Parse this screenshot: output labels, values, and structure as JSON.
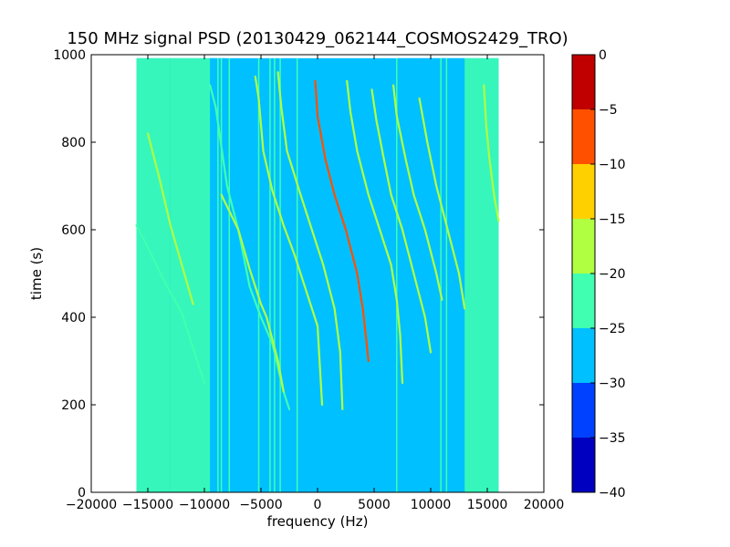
{
  "chart_data": {
    "type": "heatmap",
    "title": "150 MHz signal PSD (20130429_062144_COSMOS2429_TRO)",
    "xlabel": "frequency (Hz)",
    "ylabel": "time (s)",
    "xlim": [
      -20000,
      20000
    ],
    "ylim": [
      0,
      1000
    ],
    "x_ticks": [
      "−20000",
      "−15000",
      "−10000",
      "−5000",
      "0",
      "5000",
      "10000",
      "15000",
      "20000"
    ],
    "x_tick_values": [
      -20000,
      -15000,
      -10000,
      -5000,
      0,
      5000,
      10000,
      15000,
      20000
    ],
    "y_ticks": [
      "0",
      "200",
      "400",
      "600",
      "800",
      "1000"
    ],
    "y_tick_values": [
      0,
      200,
      400,
      600,
      800,
      1000
    ],
    "grid": false,
    "data_extent": {
      "x": [
        -16000,
        16000
      ],
      "y": [
        0,
        992
      ]
    },
    "colorbar": {
      "min": -40,
      "max": 0,
      "levels": [
        -40,
        -35,
        -30,
        -25,
        -20,
        -15,
        -10,
        -5,
        0
      ],
      "tick_labels": [
        "0",
        "−5",
        "−10",
        "−15",
        "−20",
        "−25",
        "−30",
        "−35",
        "−40"
      ],
      "colors": [
        "#0000c0",
        "#0040ff",
        "#00c0ff",
        "#40ffb0",
        "#b0ff40",
        "#ffd000",
        "#ff5000",
        "#c00000"
      ]
    },
    "background_level": -27.5,
    "noise_bands": [
      {
        "x": [
          -16000,
          -13000
        ],
        "level": -22.5
      },
      {
        "x": [
          -13000,
          -9500
        ],
        "level": -22.5
      },
      {
        "x": [
          -9500,
          -8200
        ],
        "level": -27.5
      },
      {
        "x": [
          7000,
          13000
        ],
        "level": -27.5
      },
      {
        "x": [
          13000,
          16000
        ],
        "level": -22.5
      }
    ],
    "vertical_lines": [
      {
        "x": -8800,
        "level": -22.5
      },
      {
        "x": -8500,
        "level": -22.5
      },
      {
        "x": -7800,
        "level": -22.5
      },
      {
        "x": -5200,
        "level": -22.5
      },
      {
        "x": -4200,
        "level": -22.5
      },
      {
        "x": -3800,
        "level": -22.5
      },
      {
        "x": -3300,
        "level": -22.5
      },
      {
        "x": -1800,
        "level": -22.5
      },
      {
        "x": 7000,
        "level": -22.5
      },
      {
        "x": 10900,
        "level": -22.5
      },
      {
        "x": 11400,
        "level": -22.5
      }
    ],
    "series": [
      {
        "level": -22.5,
        "points": [
          [
            -16000,
            610
          ],
          [
            -15000,
            560
          ],
          [
            -13500,
            480
          ],
          [
            -12000,
            410
          ],
          [
            -11000,
            330
          ],
          [
            -10000,
            250
          ]
        ]
      },
      {
        "level": -17.5,
        "points": [
          [
            -15000,
            820
          ],
          [
            -14000,
            720
          ],
          [
            -13000,
            610
          ],
          [
            -12000,
            520
          ],
          [
            -11000,
            430
          ]
        ]
      },
      {
        "level": -22.5,
        "points": [
          [
            -9500,
            930
          ],
          [
            -9000,
            880
          ],
          [
            -8000,
            700
          ],
          [
            -7000,
            600
          ],
          [
            -6000,
            470
          ],
          [
            -5000,
            400
          ],
          [
            -4000,
            340
          ],
          [
            -3000,
            230
          ],
          [
            -2500,
            190
          ]
        ]
      },
      {
        "level": -17.5,
        "points": [
          [
            -8500,
            680
          ],
          [
            -7000,
            600
          ],
          [
            -6000,
            510
          ],
          [
            -5000,
            430
          ],
          [
            -4500,
            400
          ],
          [
            -3500,
            300
          ],
          [
            -3000,
            230
          ]
        ]
      },
      {
        "level": -17.5,
        "points": [
          [
            -5500,
            950
          ],
          [
            -5200,
            900
          ],
          [
            -4800,
            780
          ],
          [
            -4000,
            690
          ],
          [
            -3000,
            610
          ],
          [
            -2000,
            540
          ],
          [
            -1000,
            460
          ],
          [
            0,
            380
          ],
          [
            400,
            200
          ]
        ]
      },
      {
        "level": -17.5,
        "points": [
          [
            -3500,
            960
          ],
          [
            -3200,
            880
          ],
          [
            -2700,
            780
          ],
          [
            -1500,
            680
          ],
          [
            -500,
            600
          ],
          [
            500,
            520
          ],
          [
            1500,
            420
          ],
          [
            2000,
            320
          ],
          [
            2200,
            190
          ]
        ]
      },
      {
        "level": -7.5,
        "points": [
          [
            -200,
            940
          ],
          [
            0,
            860
          ],
          [
            700,
            760
          ],
          [
            1500,
            680
          ],
          [
            2500,
            600
          ],
          [
            3500,
            500
          ],
          [
            4000,
            420
          ],
          [
            4300,
            350
          ],
          [
            4500,
            300
          ]
        ]
      },
      {
        "level": -17.5,
        "points": [
          [
            2600,
            940
          ],
          [
            2900,
            870
          ],
          [
            3500,
            780
          ],
          [
            4500,
            680
          ],
          [
            5500,
            600
          ],
          [
            6500,
            520
          ],
          [
            7000,
            440
          ],
          [
            7300,
            360
          ],
          [
            7500,
            250
          ]
        ]
      },
      {
        "level": -17.5,
        "points": [
          [
            4800,
            920
          ],
          [
            5200,
            850
          ],
          [
            5800,
            770
          ],
          [
            6500,
            680
          ],
          [
            7500,
            600
          ],
          [
            8500,
            500
          ],
          [
            9500,
            400
          ],
          [
            10000,
            320
          ]
        ]
      },
      {
        "level": -17.5,
        "points": [
          [
            6700,
            930
          ],
          [
            7000,
            860
          ],
          [
            7800,
            760
          ],
          [
            8500,
            680
          ],
          [
            9500,
            600
          ],
          [
            10500,
            500
          ],
          [
            11000,
            440
          ]
        ]
      },
      {
        "level": -17.5,
        "points": [
          [
            9000,
            900
          ],
          [
            9700,
            800
          ],
          [
            10500,
            700
          ],
          [
            11500,
            600
          ],
          [
            12500,
            500
          ],
          [
            13000,
            420
          ]
        ]
      },
      {
        "level": -17.5,
        "points": [
          [
            14700,
            930
          ],
          [
            14900,
            840
          ],
          [
            15200,
            760
          ],
          [
            15600,
            680
          ],
          [
            16000,
            620
          ]
        ]
      }
    ]
  }
}
